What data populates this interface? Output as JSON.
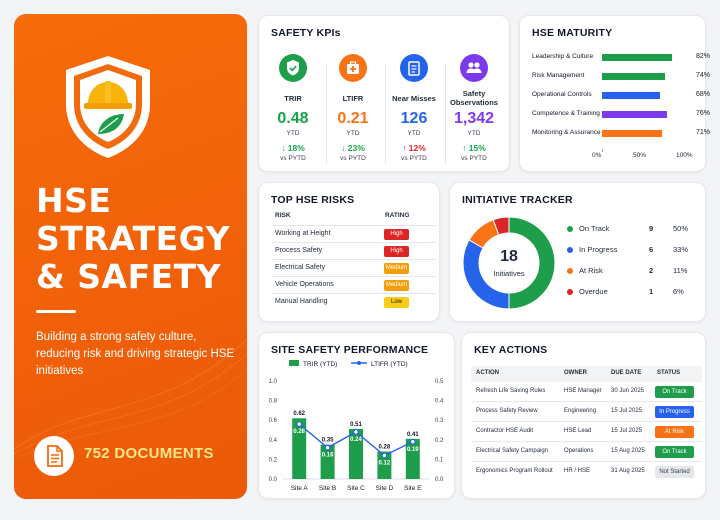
{
  "hero": {
    "title_lines": [
      "HSE",
      "STRATEGY",
      "& SAFETY"
    ],
    "subtitle": "Building a strong safety culture, reducing risk and driving strategic HSE initiatives",
    "documents": "752 DOCUMENTS",
    "icons": [
      "shield-helmet-icon",
      "document-icon"
    ],
    "colors": {
      "background": "#f26a0c",
      "accent": "#fde68a"
    }
  },
  "kpis": {
    "title": "SAFETY KPIs",
    "items": [
      {
        "label": "TRIR",
        "value": "0.48",
        "ytd": "YTD",
        "change": "18%",
        "direction": "down",
        "vs": "vs PYTD",
        "color": "#16a34a",
        "icon": "shield-check-icon"
      },
      {
        "label": "LTIFR",
        "value": "0.21",
        "ytd": "YTD",
        "change": "23%",
        "direction": "down",
        "vs": "vs PYTD",
        "color": "#f97316",
        "icon": "first-aid-kit-icon"
      },
      {
        "label": "Near Misses",
        "value": "126",
        "ytd": "YTD",
        "change": "12%",
        "direction": "up",
        "vs": "vs PYTD",
        "color": "#2563eb",
        "icon": "clipboard-icon"
      },
      {
        "label": "Safety Observations",
        "value": "1,342",
        "ytd": "YTD",
        "change": "15%",
        "direction": "up",
        "vs": "vs PYTD",
        "color": "#7c3aed",
        "icon": "people-icon"
      }
    ]
  },
  "maturity": {
    "title": "HSE MATURITY",
    "items": [
      {
        "label": "Leadership & Culture",
        "value": 82,
        "pct": "82%",
        "color": "#1e9e4a"
      },
      {
        "label": "Risk Management",
        "value": 74,
        "pct": "74%",
        "color": "#1e9e4a"
      },
      {
        "label": "Operational Controls",
        "value": 68,
        "pct": "68%",
        "color": "#2563eb"
      },
      {
        "label": "Competence & Training",
        "value": 76,
        "pct": "76%",
        "color": "#7c3aed"
      },
      {
        "label": "Monitoring & Assurance",
        "value": 71,
        "pct": "71%",
        "color": "#f97316"
      }
    ],
    "axis": [
      "0%",
      "50%",
      "100%"
    ]
  },
  "risks": {
    "title": "TOP HSE RISKS",
    "col_risk": "RISK",
    "col_rating": "RATING",
    "rows": [
      {
        "name": "Working at Height",
        "rating": "High",
        "color": "#dc2626",
        "text": "#ffffff"
      },
      {
        "name": "Process Safety",
        "rating": "High",
        "color": "#dc2626",
        "text": "#ffffff"
      },
      {
        "name": "Electrical Safety",
        "rating": "Medium",
        "color": "#f59e0b",
        "text": "#ffffff"
      },
      {
        "name": "Vehicle Operations",
        "rating": "Medium",
        "color": "#f59e0b",
        "text": "#ffffff"
      },
      {
        "name": "Manual Handling",
        "rating": "Low",
        "color": "#facc15",
        "text": "#111827"
      }
    ]
  },
  "tracker": {
    "title": "INITIATIVE TRACKER",
    "total": "18",
    "total_label": "Initiatives",
    "items": [
      {
        "label": "On Track",
        "count": 9,
        "count_text": "9",
        "pct": "50%",
        "color": "#1e9e4a"
      },
      {
        "label": "In Progress",
        "count": 6,
        "count_text": "6",
        "pct": "33%",
        "color": "#2563eb"
      },
      {
        "label": "At Risk",
        "count": 2,
        "count_text": "2",
        "pct": "11%",
        "color": "#f97316"
      },
      {
        "label": "Overdue",
        "count": 1,
        "count_text": "1",
        "pct": "6%",
        "color": "#dc2626"
      }
    ]
  },
  "chart_data": {
    "type": "bar",
    "title": "SITE SAFETY PERFORMANCE",
    "categories": [
      "Site A",
      "Site B",
      "Site C",
      "Site D",
      "Site E"
    ],
    "series": [
      {
        "name": "TRIR (YTD)",
        "type": "bar",
        "values": [
          0.62,
          0.35,
          0.51,
          0.28,
          0.41
        ],
        "labels": [
          "0.62",
          "0.35",
          "0.51",
          "0.28",
          "0.41"
        ],
        "color": "#1e9e4a"
      },
      {
        "name": "LTIFR (YTD)",
        "type": "line",
        "values": [
          0.28,
          0.16,
          0.24,
          0.12,
          0.19
        ],
        "labels": [
          "0.28",
          "0.16",
          "0.24",
          "0.12",
          "0.19"
        ],
        "color": "#2563eb"
      }
    ],
    "y_ticks_left": [
      "0.0",
      "0.2",
      "0.4",
      "0.6",
      "0.8",
      "1.0"
    ],
    "y_ticks_right": [
      "0.0",
      "0.1",
      "0.2",
      "0.3",
      "0.4",
      "0.5"
    ],
    "ylim_left": [
      0,
      1.0
    ],
    "ylim_right": [
      0,
      0.5
    ],
    "legend": "top"
  },
  "actions": {
    "title": "KEY ACTIONS",
    "headers": {
      "action": "ACTION",
      "owner": "OWNER",
      "due": "DUE DATE",
      "status": "STATUS"
    },
    "rows": [
      {
        "action": "Refresh Life Saving Rules",
        "owner": "HSE Manager",
        "due": "30 Jun 2025",
        "status": "On Track",
        "color": "#1e9e4a",
        "text": "#ffffff"
      },
      {
        "action": "Process Safety Review",
        "owner": "Engineering",
        "due": "15 Jul 2025",
        "status": "In Progress",
        "color": "#2563eb",
        "text": "#ffffff"
      },
      {
        "action": "Contractor HSE Audit",
        "owner": "HSE Lead",
        "due": "15 Jul 2025",
        "status": "At Risk",
        "color": "#f97316",
        "text": "#ffffff"
      },
      {
        "action": "Electrical Safety Campaign",
        "owner": "Operations",
        "due": "15 Aug 2025",
        "status": "On Track",
        "color": "#1e9e4a",
        "text": "#ffffff"
      },
      {
        "action": "Ergonomics Program Rollout",
        "owner": "HR / HSE",
        "due": "31 Aug 2025",
        "status": "Not Started",
        "color": "#e5e7eb",
        "text": "#374151"
      }
    ]
  }
}
